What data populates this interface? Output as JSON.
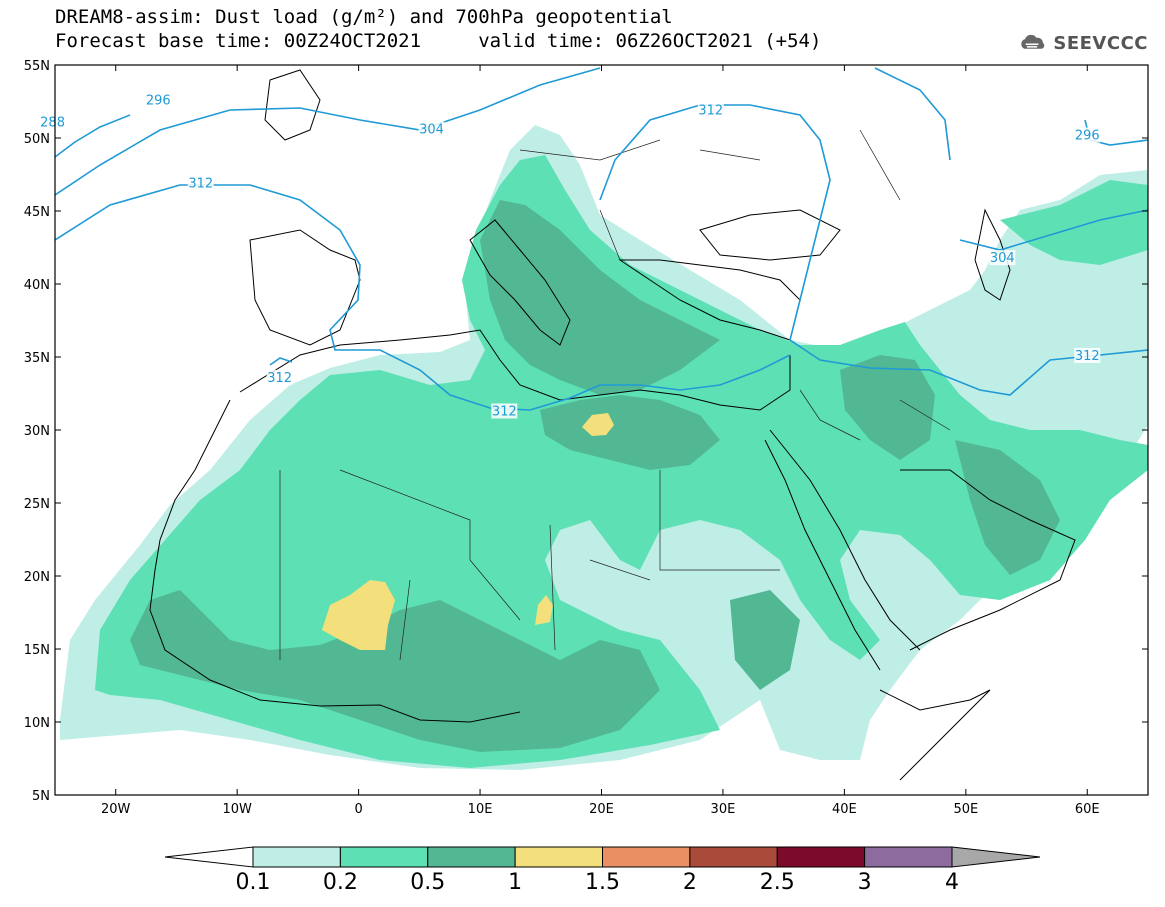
{
  "title": {
    "line1": "DREAM8-assim: Dust load (g/m²) and 700hPa geopotential",
    "line2": "Forecast base time: 00Z24OCT2021     valid time: 06Z26OCT2021 (+54)"
  },
  "logo": {
    "text": "SEEVCCC",
    "icon": "cloud-icon"
  },
  "map": {
    "lon_range": [
      -25,
      65
    ],
    "lat_range": [
      5,
      55
    ],
    "lon_labels": [
      {
        "lon": -20,
        "text": "20W"
      },
      {
        "lon": -10,
        "text": "10W"
      },
      {
        "lon": 0,
        "text": "0"
      },
      {
        "lon": 10,
        "text": "10E"
      },
      {
        "lon": 20,
        "text": "20E"
      },
      {
        "lon": 30,
        "text": "30E"
      },
      {
        "lon": 40,
        "text": "40E"
      },
      {
        "lon": 50,
        "text": "50E"
      },
      {
        "lon": 60,
        "text": "60E"
      }
    ],
    "lat_labels": [
      {
        "lat": 55,
        "text": "55N"
      },
      {
        "lat": 50,
        "text": "50N"
      },
      {
        "lat": 45,
        "text": "45N"
      },
      {
        "lat": 40,
        "text": "40N"
      },
      {
        "lat": 35,
        "text": "35N"
      },
      {
        "lat": 30,
        "text": "30N"
      },
      {
        "lat": 25,
        "text": "25N"
      },
      {
        "lat": 20,
        "text": "20N"
      },
      {
        "lat": 15,
        "text": "15N"
      },
      {
        "lat": 10,
        "text": "10N"
      },
      {
        "lat": 5,
        "text": "5N"
      }
    ],
    "isoline_color": "#1f9ad6",
    "isoline_labels": [
      {
        "text": "288",
        "lon": -25.2,
        "lat": 51.0
      },
      {
        "text": "296",
        "lon": -16.5,
        "lat": 52.5
      },
      {
        "text": "312",
        "lon": -13.0,
        "lat": 46.8
      },
      {
        "text": "304",
        "lon": 6.0,
        "lat": 50.5
      },
      {
        "text": "312",
        "lon": 29.0,
        "lat": 51.8
      },
      {
        "text": "296",
        "lon": 60.0,
        "lat": 50.1
      },
      {
        "text": "304",
        "lon": 53.0,
        "lat": 41.7
      },
      {
        "text": "312",
        "lon": 60.0,
        "lat": 35.0
      },
      {
        "text": "312",
        "lon": -6.5,
        "lat": 33.5
      },
      {
        "text": "312",
        "lon": 12.0,
        "lat": 31.2
      }
    ]
  },
  "colorbar": {
    "colors": [
      "#ffffff",
      "#bfeee6",
      "#5de0b4",
      "#52b894",
      "#f3e07c",
      "#ea8f63",
      "#a94a3a",
      "#7c0a2a",
      "#8e6b9f",
      "#a8a8a8"
    ],
    "labels": [
      "0.1",
      "0.2",
      "0.5",
      "1",
      "1.5",
      "2",
      "2.5",
      "3",
      "4"
    ]
  },
  "legend_levels": [
    "0.1",
    "0.2",
    "0.5",
    "1",
    "1.5",
    "2",
    "2.5",
    "3",
    "4"
  ]
}
